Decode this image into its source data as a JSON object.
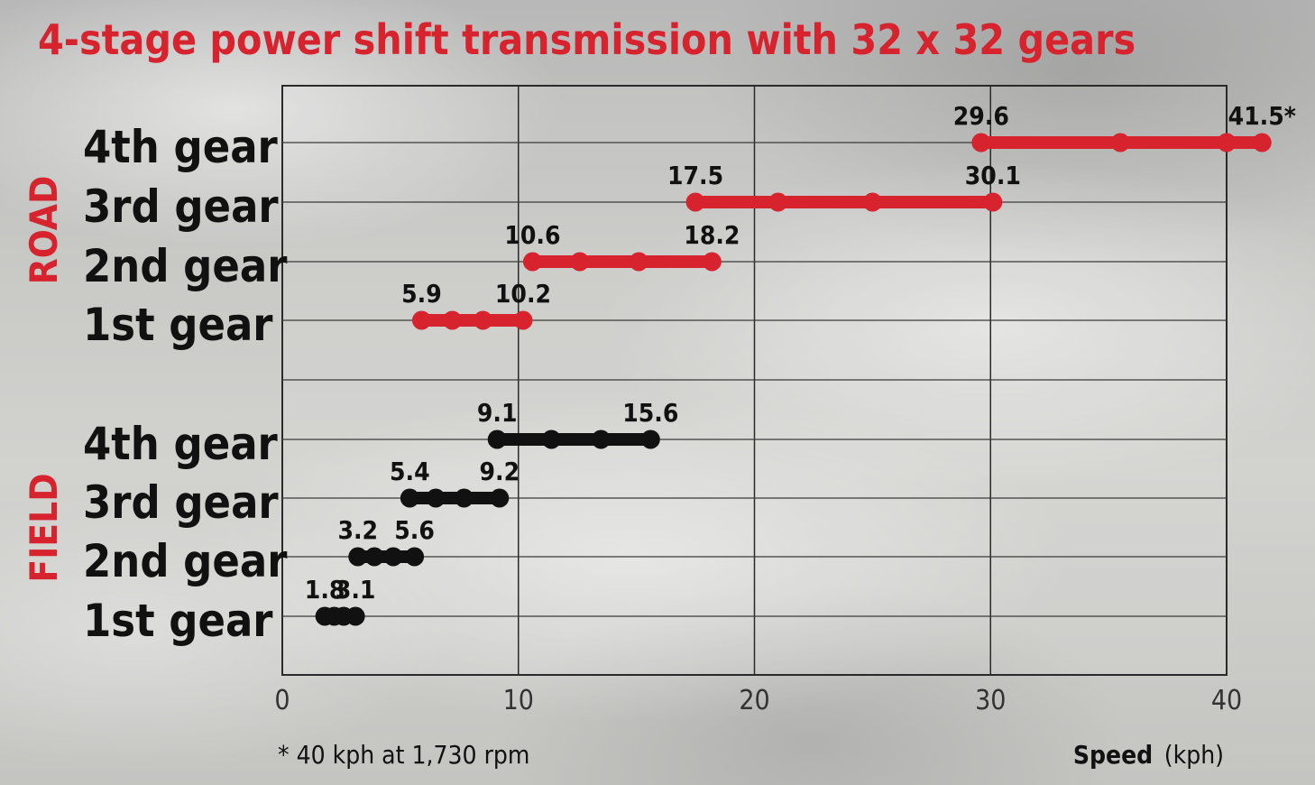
{
  "chart_data": {
    "type": "range",
    "title": "4-stage power shift transmission with 32 x 32 gears",
    "xlabel_bold": "Speed",
    "xlabel_unit": "(kph)",
    "xlim": [
      0,
      40
    ],
    "x_ticks": [
      "0",
      "10",
      "20",
      "30",
      "40"
    ],
    "grid": true,
    "footnote": "* 40 kph at 1,730 rpm",
    "groups": [
      {
        "name": "ROAD",
        "color": "#d7232e",
        "gears": [
          {
            "label": "4th gear",
            "min": 29.6,
            "max": 41.5,
            "min_label": "29.6",
            "max_label": "41.5*",
            "points": [
              29.6,
              35.5,
              40,
              41.5
            ]
          },
          {
            "label": "3rd gear",
            "min": 17.5,
            "max": 30.1,
            "min_label": "17.5",
            "max_label": "30.1",
            "points": [
              17.5,
              21,
              25,
              30.1
            ]
          },
          {
            "label": "2nd gear",
            "min": 10.6,
            "max": 18.2,
            "min_label": "10.6",
            "max_label": "18.2",
            "points": [
              10.6,
              12.6,
              15.1,
              18.2
            ]
          },
          {
            "label": "1st gear",
            "min": 5.9,
            "max": 10.2,
            "min_label": "5.9",
            "max_label": "10.2",
            "points": [
              5.9,
              7.2,
              8.5,
              10.2
            ]
          }
        ]
      },
      {
        "name": "FIELD",
        "color": "#111111",
        "gears": [
          {
            "label": "4th gear",
            "min": 9.1,
            "max": 15.6,
            "min_label": "9.1",
            "max_label": "15.6",
            "points": [
              9.1,
              11.4,
              13.5,
              15.6
            ]
          },
          {
            "label": "3rd gear",
            "min": 5.4,
            "max": 9.2,
            "min_label": "5.4",
            "max_label": "9.2",
            "points": [
              5.4,
              6.5,
              7.7,
              9.2
            ]
          },
          {
            "label": "2nd gear",
            "min": 3.2,
            "max": 5.6,
            "min_label": "3.2",
            "max_label": "5.6",
            "points": [
              3.2,
              3.9,
              4.7,
              5.6
            ]
          },
          {
            "label": "1st gear",
            "min": 1.8,
            "max": 3.1,
            "min_label": "1.8",
            "max_label": "3.1",
            "points": [
              1.8,
              2.2,
              2.6,
              3.1
            ]
          }
        ]
      }
    ]
  }
}
